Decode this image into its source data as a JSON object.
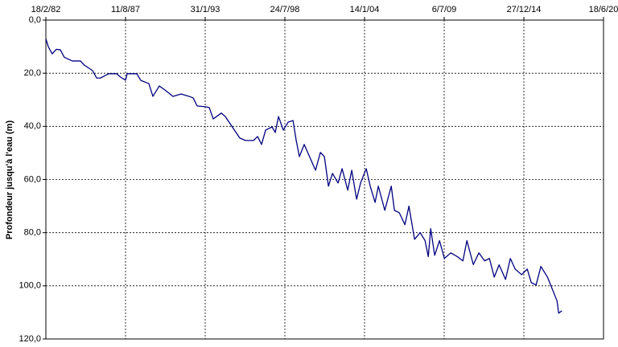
{
  "chart_data": {
    "type": "line",
    "y_label": "Profondeur jusqu'à l'eau (m)",
    "y_reversed": true,
    "x_axis_position": "top",
    "grid": true,
    "xlim": [
      "1982-02-18",
      "2020-06-18"
    ],
    "xticks": [
      {
        "value": "1982-02-18",
        "label": "18/2/82"
      },
      {
        "value": "1987-08-11",
        "label": "11/8/87"
      },
      {
        "value": "1993-01-31",
        "label": "31/1/93"
      },
      {
        "value": "1998-07-24",
        "label": "24/7/98"
      },
      {
        "value": "2004-01-14",
        "label": "14/1/04"
      },
      {
        "value": "2009-07-06",
        "label": "6/7/09"
      },
      {
        "value": "2014-12-27",
        "label": "27/12/14"
      },
      {
        "value": "2020-06-18",
        "label": "18/6/20"
      }
    ],
    "ylim": [
      0,
      120
    ],
    "yticks": [
      {
        "value": 0,
        "label": "0,0"
      },
      {
        "value": 20,
        "label": "20,0"
      },
      {
        "value": 40,
        "label": "40,0"
      },
      {
        "value": 60,
        "label": "60,0"
      },
      {
        "value": 80,
        "label": "80,0"
      },
      {
        "value": 100,
        "label": "100,0"
      },
      {
        "value": 120,
        "label": "120,0"
      }
    ],
    "x": [
      "1982-02-18",
      "1982-04-19",
      "1982-07-27",
      "1982-11-06",
      "1983-02-16",
      "1983-05-27",
      "1983-12-16",
      "1984-07-05",
      "1984-10-15",
      "1985-05-05",
      "1985-08-14",
      "1985-11-22",
      "1986-06-13",
      "1987-01-01",
      "1987-04-12",
      "1987-08-11",
      "1987-09-20",
      "1988-05-20",
      "1988-08-29",
      "1989-03-18",
      "1989-06-28",
      "1989-12-05",
      "1990-04-27",
      "1990-11-14",
      "1991-06-06",
      "1991-12-25",
      "1992-04-04",
      "1992-07-13",
      "1993-02-01",
      "1993-05-12",
      "1993-08-21",
      "1994-03-11",
      "1994-06-20",
      "1995-01-08",
      "1995-06-19",
      "1995-11-07",
      "1996-05-29",
      "1996-09-07",
      "1996-12-16",
      "1997-03-28",
      "1997-09-06",
      "1997-11-25",
      "1998-02-14",
      "1998-06-16",
      "1998-10-15",
      "1999-02-14",
      "1999-05-05",
      "1999-07-24",
      "1999-11-22",
      "2000-04-12",
      "2000-09-01",
      "2001-01-01",
      "2001-04-12",
      "2001-07-22",
      "2001-10-31",
      "2002-03-21",
      "2002-06-30",
      "2002-11-18",
      "2003-02-27",
      "2003-06-29",
      "2003-10-07",
      "2004-02-26",
      "2004-06-05",
      "2004-10-05",
      "2004-12-26",
      "2005-06-06",
      "2005-11-15",
      "2006-02-03",
      "2006-06-05",
      "2006-10-24",
      "2007-02-02",
      "2007-06-23",
      "2007-11-11",
      "2008-03-13",
      "2008-06-02",
      "2008-08-01",
      "2008-11-09",
      "2009-03-11",
      "2009-07-10",
      "2009-12-19",
      "2010-05-30",
      "2010-10-19",
      "2011-01-27",
      "2011-07-07",
      "2011-11-25",
      "2012-04-16",
      "2012-08-15",
      "2012-12-14",
      "2013-04-15",
      "2013-09-23",
      "2014-01-22",
      "2014-05-23",
      "2014-11-01",
      "2015-03-22",
      "2015-07-01",
      "2015-10-30",
      "2016-02-28",
      "2016-08-10",
      "2017-04-09",
      "2017-05-19",
      "2017-08-08"
    ],
    "series": [
      {
        "color": "#000080",
        "values": [
          7,
          10,
          12.7,
          11,
          11.2,
          14,
          15.4,
          15.4,
          17,
          19,
          21.8,
          21.8,
          20.2,
          20.2,
          21.5,
          22.6,
          20.2,
          20.2,
          22.7,
          23.9,
          28.7,
          24.8,
          26.3,
          28.7,
          27.8,
          28.7,
          29.3,
          32.3,
          32.6,
          32.9,
          37.2,
          35,
          36.3,
          40.8,
          44.4,
          45.3,
          45.3,
          43.8,
          46.8,
          41.4,
          40.2,
          42.3,
          36.3,
          41.4,
          38.4,
          37.8,
          45.3,
          51.4,
          46.8,
          51.7,
          56.5,
          49.8,
          51.4,
          62.5,
          57.7,
          61.3,
          55.9,
          64,
          56.5,
          67.4,
          61.3,
          55.9,
          62.5,
          68.6,
          62.5,
          71.6,
          62.5,
          71.6,
          72.5,
          77,
          70,
          82.5,
          80,
          83,
          89,
          78.5,
          88.5,
          83,
          89.7,
          87.6,
          89,
          90.6,
          83,
          92,
          87.6,
          90.6,
          89.7,
          96.7,
          92.1,
          97.6,
          89.7,
          93.7,
          95.8,
          93.7,
          98.8,
          99.7,
          92.7,
          96.7,
          105.7,
          110.3,
          109.4
        ]
      }
    ]
  }
}
